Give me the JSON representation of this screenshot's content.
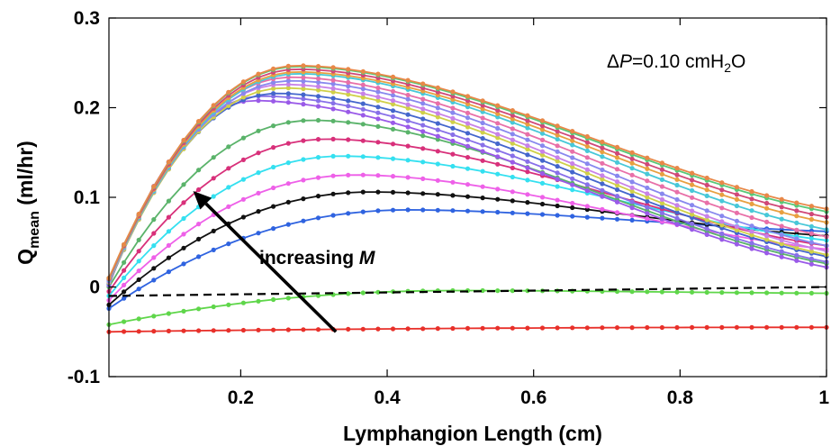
{
  "chart_data": {
    "type": "line",
    "title": "",
    "xlabel": "Lymphangion Length (cm)",
    "ylabel": {
      "main": "Q",
      "sub": "mean",
      "unit": " (ml/hr)"
    },
    "xlim": [
      0.02,
      1.0
    ],
    "ylim": [
      -0.1,
      0.3
    ],
    "x_ticks": [
      0.2,
      0.4,
      0.6,
      0.8,
      1
    ],
    "x_tick_labels": [
      "0.2",
      "0.4",
      "0.6",
      "0.8",
      "1"
    ],
    "y_ticks": [
      -0.1,
      0,
      0.1,
      0.2,
      0.3
    ],
    "y_tick_labels": [
      "-0.1",
      "0",
      "0.1",
      "0.2",
      "0.3"
    ],
    "grid": false,
    "annotations": {
      "pressure": {
        "delta": "Δ",
        "var": "P",
        "value": "=0.10 cmH",
        "sub": "2",
        "unit": "O"
      },
      "arrow": {
        "label_main": "increasing ",
        "label_var": "M",
        "from": [
          0.33,
          -0.05
        ],
        "to": [
          0.135,
          0.107
        ]
      }
    },
    "reference_line": {
      "y": -0.01,
      "style": "dashed",
      "color": "#000000"
    },
    "series": [
      {
        "color": "#e8302a",
        "peak_x": 1.0,
        "y0": -0.05,
        "peak": -0.045,
        "yend": -0.045
      },
      {
        "color": "#5fd64a",
        "peak_x": 0.5,
        "y0": -0.042,
        "peak": -0.004,
        "yend": -0.007
      },
      {
        "color": "#2f63e0",
        "peak_x": 0.43,
        "y0": -0.024,
        "peak": 0.086,
        "yend": 0.062
      },
      {
        "color": "#111111",
        "peak_x": 0.38,
        "y0": -0.02,
        "peak": 0.106,
        "yend": 0.057
      },
      {
        "color": "#ee60e8",
        "peak_x": 0.36,
        "y0": -0.015,
        "peak": 0.125,
        "yend": 0.042
      },
      {
        "color": "#34e0f0",
        "peak_x": 0.34,
        "y0": -0.01,
        "peak": 0.146,
        "yend": 0.052
      },
      {
        "color": "#d8307a",
        "peak_x": 0.32,
        "y0": -0.005,
        "peak": 0.165,
        "yend": 0.046
      },
      {
        "color": "#5ab36a",
        "peak_x": 0.3,
        "y0": 0.0,
        "peak": 0.186,
        "yend": 0.026
      },
      {
        "color": "#9a5ae8",
        "peak_x": 0.22,
        "y0": 0.002,
        "peak": 0.208,
        "yend": 0.022
      },
      {
        "color": "#8870e8",
        "peak_x": 0.23,
        "y0": 0.003,
        "peak": 0.213,
        "yend": 0.028
      },
      {
        "color": "#4466cc",
        "peak_x": 0.25,
        "y0": 0.004,
        "peak": 0.216,
        "yend": 0.034
      },
      {
        "color": "#d0d048",
        "peak_x": 0.26,
        "y0": 0.005,
        "peak": 0.222,
        "yend": 0.036
      },
      {
        "color": "#c882e8",
        "peak_x": 0.26,
        "y0": 0.006,
        "peak": 0.226,
        "yend": 0.04
      },
      {
        "color": "#8888ee",
        "peak_x": 0.27,
        "y0": 0.007,
        "peak": 0.23,
        "yend": 0.046
      },
      {
        "color": "#e870a8",
        "peak_x": 0.27,
        "y0": 0.008,
        "peak": 0.234,
        "yend": 0.056
      },
      {
        "color": "#48c8d8",
        "peak_x": 0.28,
        "y0": 0.008,
        "peak": 0.238,
        "yend": 0.064
      },
      {
        "color": "#e8a040",
        "peak_x": 0.28,
        "y0": 0.009,
        "peak": 0.24,
        "yend": 0.072
      },
      {
        "color": "#d04878",
        "peak_x": 0.28,
        "y0": 0.009,
        "peak": 0.243,
        "yend": 0.078
      },
      {
        "color": "#58c878",
        "peak_x": 0.28,
        "y0": 0.01,
        "peak": 0.246,
        "yend": 0.084
      },
      {
        "color": "#e88848",
        "peak_x": 0.28,
        "y0": 0.01,
        "peak": 0.247,
        "yend": 0.087
      }
    ]
  }
}
